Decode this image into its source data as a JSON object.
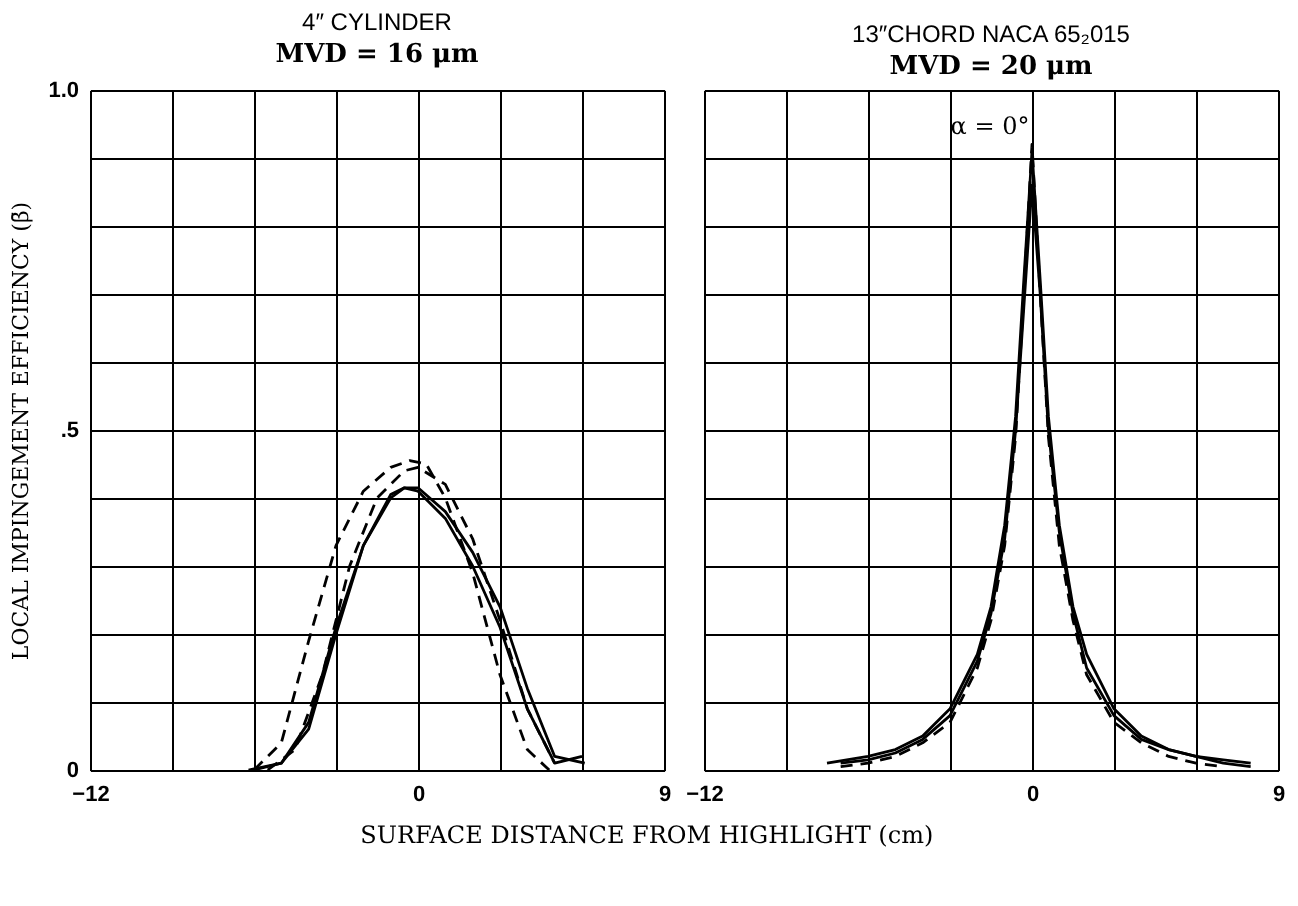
{
  "chart_data": [
    {
      "type": "line",
      "title": "4″ CYLINDER",
      "subtitle": "MVD = 16 μm",
      "ylabel": "LOCAL IMPINGEMENT EFFICIENCY (β̄)",
      "xlabel": "SURFACE DISTANCE FROM HIGHLIGHT (cm)",
      "xlim": [
        -12,
        9
      ],
      "ylim": [
        0,
        1
      ],
      "xticks": [
        -12,
        {
          "value": -9,
          "label": null
        },
        {
          "value": -6,
          "label": null
        },
        {
          "value": -3,
          "label": null
        },
        0,
        {
          "value": 3,
          "label": null
        },
        {
          "value": 6,
          "label": null
        },
        9
      ],
      "yticks": [
        0,
        {
          "value": 0.1,
          "label": null
        },
        {
          "value": 0.2,
          "label": null
        },
        {
          "value": 0.3,
          "label": null
        },
        {
          "value": 0.4,
          "label": null
        },
        {
          "value": 0.5,
          "label": ".5"
        },
        {
          "value": 0.6,
          "label": null
        },
        {
          "value": 0.7,
          "label": null
        },
        {
          "value": 0.8,
          "label": null
        },
        {
          "value": 0.9,
          "label": null
        },
        {
          "value": 1,
          "label": "1.0"
        }
      ],
      "grid": true,
      "marker": "none",
      "series": [
        {
          "color": "#000000",
          "line_style": "solid",
          "x": [
            -6.2,
            -5,
            -4,
            -3,
            -2,
            -1,
            -0.5,
            0,
            1,
            2,
            3,
            4,
            5,
            6
          ],
          "values": [
            0,
            0.01,
            0.07,
            0.21,
            0.33,
            0.405,
            0.415,
            0.41,
            0.37,
            0.3,
            0.21,
            0.09,
            0.01,
            0.02
          ]
        },
        {
          "color": "#000000",
          "line_style": "solid",
          "x": [
            -6,
            -5,
            -4,
            -3,
            -2,
            -1,
            -0.5,
            0,
            1,
            2,
            3,
            4,
            5,
            6.1
          ],
          "values": [
            0,
            0.01,
            0.06,
            0.2,
            0.33,
            0.4,
            0.415,
            0.415,
            0.38,
            0.32,
            0.24,
            0.12,
            0.02,
            0.01
          ]
        },
        {
          "color": "#000000",
          "line_style": "dashed",
          "x": [
            -6,
            -5,
            -4,
            -3,
            -2,
            -1,
            -0.3,
            0.3,
            1,
            2,
            3,
            4,
            4.8
          ],
          "values": [
            0,
            0.04,
            0.19,
            0.33,
            0.41,
            0.445,
            0.455,
            0.45,
            0.4,
            0.29,
            0.14,
            0.03,
            0
          ]
        },
        {
          "color": "#000000",
          "line_style": "dashed",
          "x": [
            -5.5,
            -4.5,
            -3.5,
            -2.5,
            -1.5,
            -0.5,
            0,
            1,
            2,
            3,
            4,
            5
          ],
          "values": [
            0,
            0.03,
            0.14,
            0.3,
            0.4,
            0.44,
            0.445,
            0.42,
            0.34,
            0.22,
            0.09,
            0.01
          ]
        }
      ]
    },
    {
      "type": "line",
      "title": "13″CHORD  NACA 65₂015",
      "subtitle": "MVD = 20 μm",
      "annotations": [
        "α = 0°"
      ],
      "xlim": [
        -12,
        9
      ],
      "ylim": [
        0,
        1
      ],
      "xticks": [
        -12,
        {
          "value": -9,
          "label": null
        },
        {
          "value": -6,
          "label": null
        },
        {
          "value": -3,
          "label": null
        },
        0,
        {
          "value": 3,
          "label": null
        },
        {
          "value": 6,
          "label": null
        },
        9
      ],
      "yticks": [
        {
          "value": 0,
          "label": null
        },
        {
          "value": 0.1,
          "label": null
        },
        {
          "value": 0.2,
          "label": null
        },
        {
          "value": 0.3,
          "label": null
        },
        {
          "value": 0.4,
          "label": null
        },
        {
          "value": 0.5,
          "label": null
        },
        {
          "value": 0.6,
          "label": null
        },
        {
          "value": 0.7,
          "label": null
        },
        {
          "value": 0.8,
          "label": null
        },
        {
          "value": 0.9,
          "label": null
        },
        {
          "value": 1,
          "label": null
        }
      ],
      "tick_labels": "x",
      "grid": true,
      "marker": "none",
      "series": [
        {
          "color": "#000000",
          "line_style": "solid",
          "x": [
            -7.5,
            -6,
            -5,
            -4,
            -3,
            -2,
            -1.5,
            -1,
            -0.6,
            -0.3,
            0,
            0.3,
            0.6,
            1,
            1.5,
            2,
            3,
            4,
            5,
            6,
            7,
            8
          ],
          "values": [
            0.01,
            0.02,
            0.03,
            0.05,
            0.09,
            0.17,
            0.24,
            0.36,
            0.52,
            0.72,
            0.91,
            0.72,
            0.52,
            0.36,
            0.24,
            0.17,
            0.09,
            0.05,
            0.03,
            0.02,
            0.015,
            0.01
          ]
        },
        {
          "color": "#000000",
          "line_style": "solid",
          "x": [
            -7,
            -6,
            -5,
            -4,
            -3,
            -2,
            -1.5,
            -1,
            -0.6,
            -0.3,
            0,
            0.3,
            0.6,
            1,
            1.5,
            2,
            3,
            4,
            5,
            6,
            7,
            8
          ],
          "values": [
            0.01,
            0.015,
            0.025,
            0.045,
            0.08,
            0.16,
            0.23,
            0.34,
            0.5,
            0.68,
            0.86,
            0.7,
            0.5,
            0.35,
            0.23,
            0.15,
            0.08,
            0.045,
            0.03,
            0.02,
            0.01,
            0.005
          ]
        },
        {
          "color": "#000000",
          "line_style": "dashed",
          "x": [
            -7,
            -6,
            -5,
            -4,
            -3,
            -2,
            -1.5,
            -1,
            -0.6,
            -0.3,
            0,
            0.3,
            0.6,
            1,
            1.5,
            2,
            3,
            4,
            5,
            6,
            7
          ],
          "values": [
            0.005,
            0.01,
            0.02,
            0.04,
            0.07,
            0.15,
            0.22,
            0.33,
            0.49,
            0.7,
            0.92,
            0.7,
            0.49,
            0.33,
            0.22,
            0.14,
            0.07,
            0.04,
            0.02,
            0.01,
            0.005
          ]
        }
      ]
    }
  ]
}
